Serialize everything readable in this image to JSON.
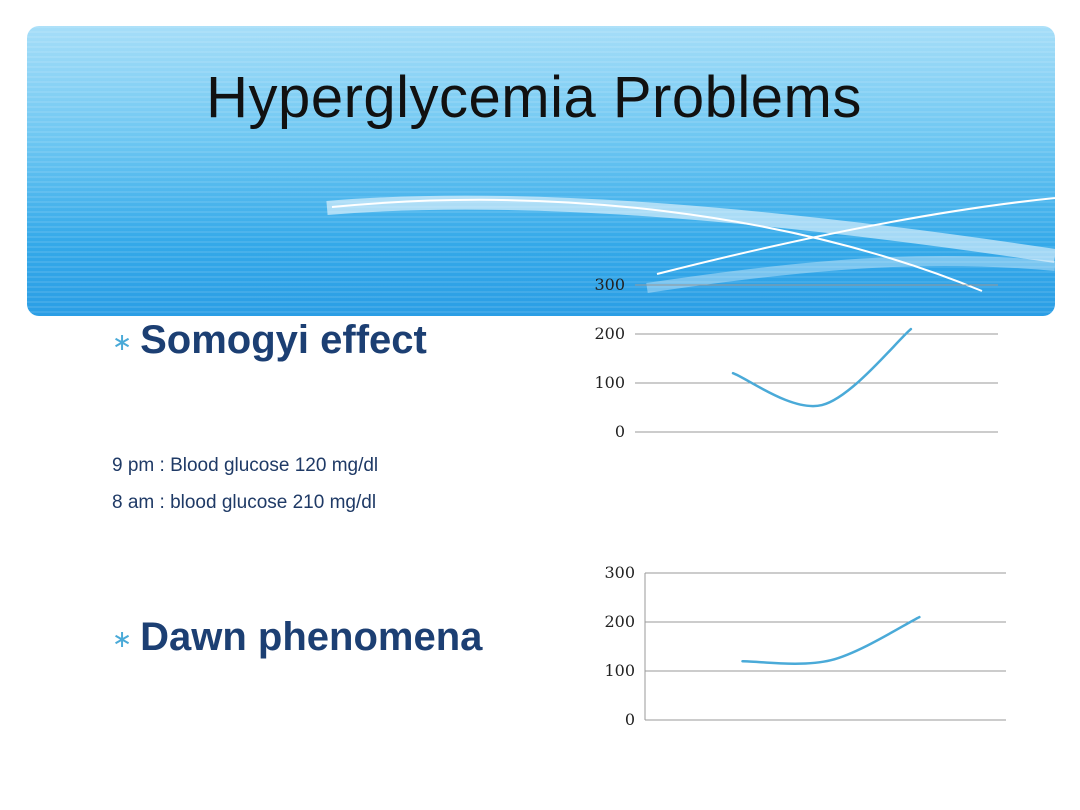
{
  "slide": {
    "title": "Hyperglycemia Problems",
    "bullets": [
      {
        "symbol": "∗",
        "label": "Somogyi effect"
      },
      {
        "symbol": "∗",
        "label": "Dawn phenomena"
      }
    ],
    "notes": [
      "9 pm : Blood glucose 120 mg/dl",
      "8 am : blood glucose 210 mg/dl"
    ],
    "colors": {
      "banner_light": "#a6def8",
      "banner_dark": "#2b9ee5",
      "bullet_text": "#1c3f73",
      "series_line": "#4aaad8"
    }
  },
  "chart_data": [
    {
      "type": "line",
      "title": "",
      "xlabel": "",
      "ylabel": "",
      "ylim": [
        0,
        300
      ],
      "yticks": [
        0,
        100,
        200,
        300
      ],
      "grid": true,
      "x": [
        1,
        2,
        3
      ],
      "series": [
        {
          "values": [
            120,
            55,
            210
          ]
        }
      ]
    },
    {
      "type": "line",
      "title": "",
      "xlabel": "",
      "ylabel": "",
      "ylim": [
        0,
        300
      ],
      "yticks": [
        0,
        100,
        200,
        300
      ],
      "grid": true,
      "x": [
        1,
        2,
        3
      ],
      "series": [
        {
          "values": [
            120,
            122,
            210
          ]
        }
      ]
    }
  ]
}
